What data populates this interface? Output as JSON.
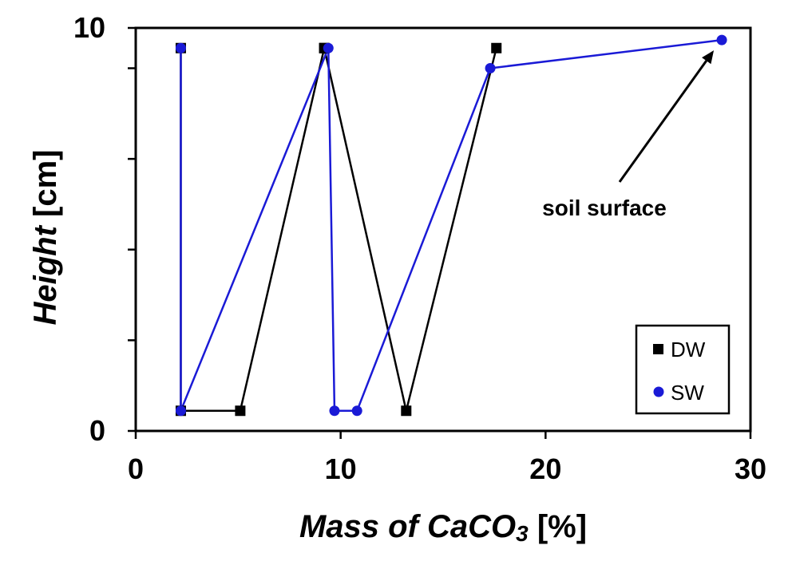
{
  "colors": {
    "DW": "#000000",
    "SW": "#1a1ad6"
  },
  "chart_data": {
    "type": "line",
    "xlabel_main": "Mass of CaCO",
    "xlabel_sub": "3",
    "xlabel_unit": " [%]",
    "ylabel_main": "Height",
    "ylabel_unit": " [cm]",
    "xlim": [
      0,
      30
    ],
    "ylim": [
      0,
      10
    ],
    "x_ticks": [
      0,
      10,
      20,
      30
    ],
    "x_tick_labels": [
      "0",
      "10",
      "20",
      "30"
    ],
    "y_tick_labels": [
      "0",
      "10"
    ],
    "y_tick_label_values": [
      0,
      10
    ],
    "y_minor_ticks": [
      0,
      2.25,
      4.5,
      6.75,
      9,
      10
    ],
    "legend_position": "bottom-right",
    "annotation": {
      "text": "soil surface",
      "target": {
        "x": 28.6,
        "y": 9.7
      }
    },
    "series": [
      {
        "name": "DW",
        "marker": "square",
        "points": [
          {
            "x": 2.2,
            "y": 9.5
          },
          {
            "x": 2.2,
            "y": 0.5
          },
          {
            "x": 5.1,
            "y": 0.5
          },
          {
            "x": 9.2,
            "y": 9.5
          },
          {
            "x": 9.2,
            "y": 9.5
          },
          {
            "x": 13.2,
            "y": 0.5
          },
          {
            "x": 17.6,
            "y": 9.5
          }
        ]
      },
      {
        "name": "SW",
        "marker": "circle",
        "points": [
          {
            "x": 2.2,
            "y": 9.5
          },
          {
            "x": 2.2,
            "y": 0.5
          },
          {
            "x": 9.4,
            "y": 9.5
          },
          {
            "x": 9.7,
            "y": 0.5
          },
          {
            "x": 10.8,
            "y": 0.5
          },
          {
            "x": 17.3,
            "y": 9.0
          },
          {
            "x": 28.6,
            "y": 9.7
          }
        ]
      }
    ]
  }
}
